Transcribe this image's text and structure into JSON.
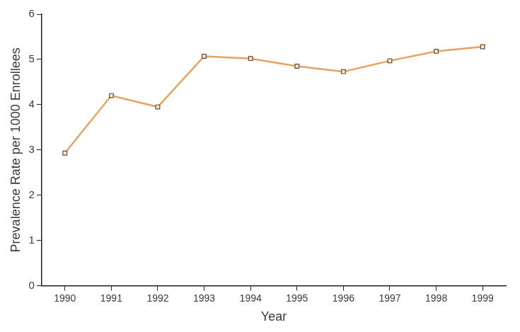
{
  "chart_data": {
    "type": "line",
    "x_label": "Year",
    "y_label": "Prevalence Rate per 1000 Enrollees",
    "categories": [
      "1990",
      "1991",
      "1992",
      "1993",
      "1994",
      "1995",
      "1996",
      "1997",
      "1998",
      "1999"
    ],
    "values": [
      2.93,
      4.2,
      3.95,
      5.07,
      5.02,
      4.85,
      4.73,
      4.97,
      5.18,
      5.28
    ],
    "color": "#e9a15f",
    "marker": "square",
    "ylim": [
      0,
      6
    ],
    "yticks": [
      0,
      1,
      2,
      3,
      4,
      5,
      6
    ],
    "grid": false
  }
}
